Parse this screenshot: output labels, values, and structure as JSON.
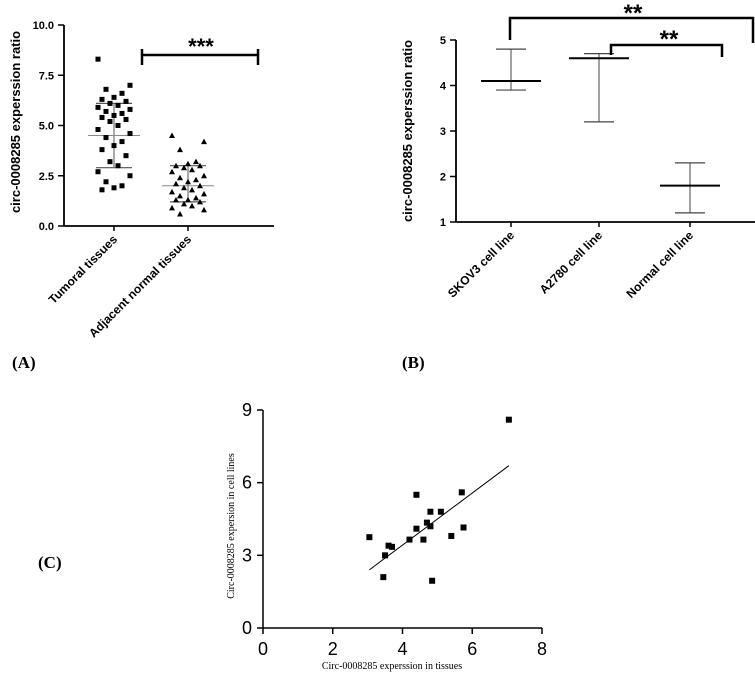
{
  "panel_labels": {
    "a": "(A)",
    "b": "(B)",
    "c": "(C)"
  },
  "chart_data": [
    {
      "id": "A",
      "type": "scatter",
      "title": "",
      "ylabel": "circ-0008285 experssion ratio",
      "xlabel": "",
      "ylim": [
        0,
        10
      ],
      "yticks": [
        "0.0",
        "2.5",
        "5.0",
        "7.5",
        "10.0"
      ],
      "categories": [
        "Tumoral tissues",
        "Adjacent normal tissues"
      ],
      "series": [
        {
          "name": "Tumoral tissues",
          "marker": "square",
          "mean": 4.5,
          "sd_low": 2.9,
          "sd_high": 6.1,
          "values": [
            8.3,
            7.0,
            6.8,
            6.6,
            6.4,
            6.3,
            6.2,
            6.1,
            6.0,
            5.9,
            5.8,
            5.7,
            5.6,
            5.5,
            5.4,
            5.3,
            5.2,
            5.0,
            4.8,
            4.6,
            4.4,
            4.2,
            4.0,
            3.8,
            3.5,
            3.2,
            3.0,
            2.7,
            2.5,
            2.2,
            2.0,
            1.9,
            1.8
          ]
        },
        {
          "name": "Adjacent normal tissues",
          "marker": "triangle",
          "mean": 2.0,
          "sd_low": 1.2,
          "sd_high": 3.0,
          "values": [
            4.5,
            4.2,
            3.8,
            3.2,
            3.1,
            3.0,
            3.0,
            2.9,
            2.8,
            2.7,
            2.5,
            2.4,
            2.3,
            2.2,
            2.1,
            2.0,
            1.9,
            1.8,
            1.7,
            1.6,
            1.5,
            1.4,
            1.3,
            1.3,
            1.2,
            1.1,
            1.0,
            0.9,
            0.8,
            0.6
          ]
        }
      ],
      "annotations": [
        {
          "text": "***",
          "between": [
            "Tumoral tissues",
            "Adjacent normal tissues"
          ]
        }
      ]
    },
    {
      "id": "B",
      "type": "bar",
      "title": "",
      "ylabel": "circ-0008285 experssion ratio",
      "xlabel": "",
      "ylim": [
        1,
        5
      ],
      "yticks": [
        "1",
        "2",
        "3",
        "4",
        "5"
      ],
      "categories": [
        "SKOV3 cell line",
        "A2780 cell line",
        "Normal cell line"
      ],
      "series": [
        {
          "name": "mean",
          "values": [
            4.1,
            4.6,
            1.8
          ]
        },
        {
          "name": "error_low",
          "values": [
            3.9,
            3.2,
            1.2
          ]
        },
        {
          "name": "error_high",
          "values": [
            4.8,
            4.7,
            2.3
          ]
        }
      ],
      "annotations": [
        {
          "text": "**",
          "between": [
            "SKOV3 cell line",
            "Normal cell line"
          ]
        },
        {
          "text": "**",
          "between": [
            "A2780 cell line",
            "Normal cell line"
          ]
        }
      ]
    },
    {
      "id": "C",
      "type": "scatter",
      "title": "",
      "xlabel": "Circ-0008285 experssion in tissues",
      "ylabel": "Circ-0008285 expersion in cell lines",
      "xlim": [
        0,
        8
      ],
      "ylim": [
        0,
        9
      ],
      "xticks": [
        "0",
        "2",
        "4",
        "6",
        "8"
      ],
      "yticks": [
        "0",
        "3",
        "6",
        "9"
      ],
      "x": [
        3.05,
        3.6,
        3.7,
        3.5,
        3.45,
        4.2,
        4.4,
        4.4,
        4.6,
        4.7,
        4.8,
        4.8,
        4.85,
        5.1,
        5.4,
        5.7,
        5.75,
        7.05
      ],
      "y": [
        3.75,
        3.4,
        3.35,
        3.0,
        2.1,
        3.65,
        4.1,
        5.5,
        3.65,
        4.35,
        4.2,
        4.8,
        1.95,
        4.8,
        3.8,
        5.6,
        4.15,
        8.6
      ],
      "trendline": {
        "x": [
          3.05,
          7.05
        ],
        "y": [
          2.4,
          6.7
        ]
      }
    }
  ]
}
